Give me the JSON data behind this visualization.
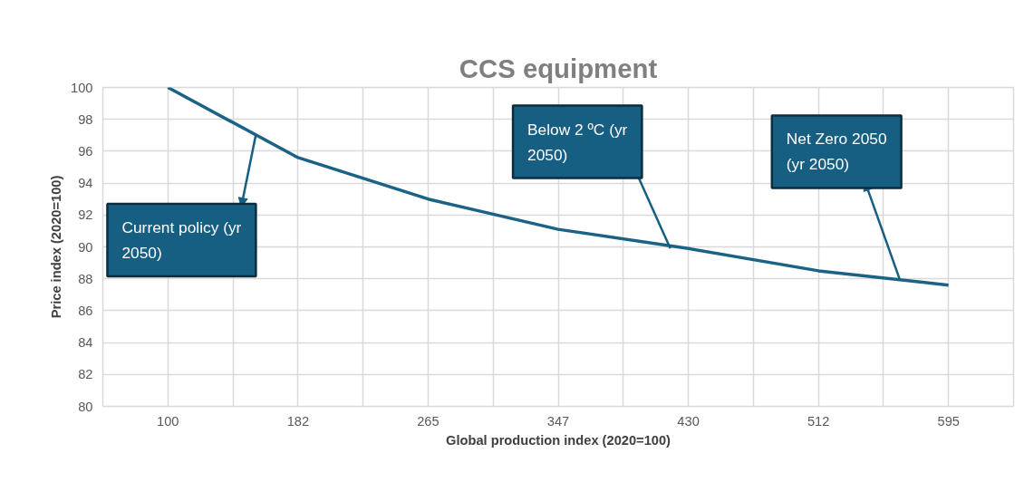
{
  "chart_data": {
    "type": "line",
    "title": "CCS equipment",
    "xlabel": "Global production index (2020=100)",
    "ylabel": "Price index (2020=100)",
    "x": [
      100,
      182.5,
      265,
      347.5,
      430,
      512.5,
      595
    ],
    "series": [
      {
        "color": "#1b6386",
        "values": [
          100,
          95.6,
          93.0,
          91.1,
          89.9,
          88.5,
          87.6
        ]
      }
    ],
    "xlim": [
      58.75,
      636.25
    ],
    "xticks": [
      100,
      {
        "value": 141.25,
        "label": null
      },
      {
        "value": 182.5,
        "label": "182"
      },
      {
        "value": 223.75,
        "label": null
      },
      265,
      {
        "value": 306.25,
        "label": null
      },
      {
        "value": 347.5,
        "label": "347"
      },
      {
        "value": 388.75,
        "label": null
      },
      430,
      {
        "value": 471.25,
        "label": null
      },
      {
        "value": 512.5,
        "label": "512"
      },
      {
        "value": 553.75,
        "label": null
      },
      595
    ],
    "ylim": [
      80,
      100
    ],
    "yticks": [
      80,
      82,
      84,
      86,
      88,
      90,
      92,
      94,
      96,
      98,
      100
    ],
    "grid": true,
    "marker": "none",
    "line_style": "solid",
    "annotations": [
      {
        "text": "Current policy (yr 2050)",
        "x": 155.7,
        "y": 97.0
      },
      {
        "text": "Below 2 ºC (yr 2050)",
        "x": 418.6,
        "y": 89.9
      },
      {
        "text": "Net Zero 2050 (yr 2050)",
        "x": 563.9,
        "y": 88.0
      }
    ]
  }
}
